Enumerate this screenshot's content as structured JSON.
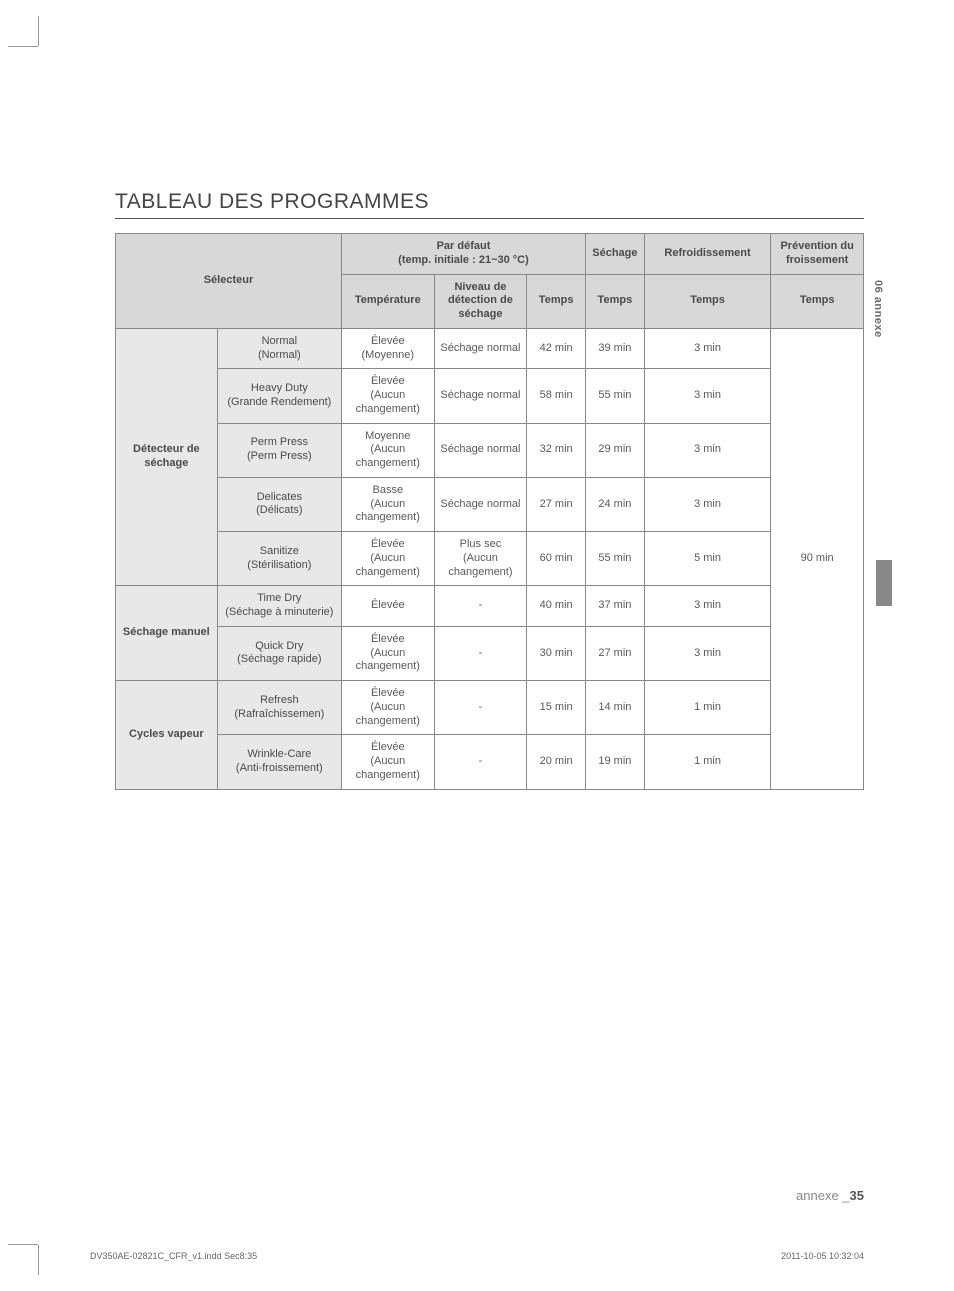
{
  "title": "TABLEAU DES PROGRAMMES",
  "sideTab": "06 annexe",
  "headers": {
    "selector": "Sélecteur",
    "defaultGroup": "Par défaut",
    "defaultSub": "(temp. initiale : 21~30 °C)",
    "drying": "Séchage",
    "cooling": "Refroidissement",
    "wrinkle": "Prévention du froissement",
    "temperature": "Température",
    "dryLevel": "Niveau de détection de séchage",
    "time": "Temps",
    "timeDry": "Temps",
    "timeCool": "Temps",
    "timeWrinkle": "Temps"
  },
  "groups": [
    {
      "label": "Détecteur de séchage",
      "rows": [
        {
          "cycle": "Normal",
          "cycleSub": "(Normal)",
          "temp": "Élevée",
          "tempSub": "(Moyenne)",
          "level": "Séchage normal",
          "time": "42 min",
          "dry": "39 min",
          "cool": "3 min"
        },
        {
          "cycle": "Heavy Duty",
          "cycleSub": "(Grande Rendement)",
          "temp": "Élevée",
          "tempSub": "(Aucun changement)",
          "level": "Séchage normal",
          "time": "58 min",
          "dry": "55 min",
          "cool": "3 min"
        },
        {
          "cycle": "Perm Press",
          "cycleSub": "(Perm Press)",
          "temp": "Moyenne",
          "tempSub": "(Aucun changement)",
          "level": "Séchage normal",
          "time": "32 min",
          "dry": "29 min",
          "cool": "3 min"
        },
        {
          "cycle": "Delicates",
          "cycleSub": "(Délicats)",
          "temp": "Basse",
          "tempSub": "(Aucun changement)",
          "level": "Séchage normal",
          "time": "27 min",
          "dry": "24 min",
          "cool": "3 min"
        },
        {
          "cycle": "Sanitize",
          "cycleSub": "(Stérilisation)",
          "temp": "Élevée",
          "tempSub": "(Aucun changement)",
          "level": "Plus sec",
          "levelSub": "(Aucun changement)",
          "time": "60 min",
          "dry": "55 min",
          "cool": "5 min"
        }
      ]
    },
    {
      "label": "Séchage manuel",
      "rows": [
        {
          "cycle": "Time Dry",
          "cycleSub": "(Séchage à minuterie)",
          "temp": "Élevée",
          "tempSub": "",
          "level": "-",
          "time": "40 min",
          "dry": "37 min",
          "cool": "3 min"
        },
        {
          "cycle": "Quick Dry",
          "cycleSub": "(Séchage rapide)",
          "temp": "Élevée",
          "tempSub": "(Aucun changement)",
          "level": "-",
          "time": "30 min",
          "dry": "27 min",
          "cool": "3 min"
        }
      ]
    },
    {
      "label": "Cycles vapeur",
      "rows": [
        {
          "cycle": "Refresh",
          "cycleSub": "(Rafraîchissemen)",
          "temp": "Élevée",
          "tempSub": "(Aucun changement)",
          "level": "-",
          "time": "15 min",
          "dry": "14 min",
          "cool": "1 min"
        },
        {
          "cycle": "Wrinkle-Care",
          "cycleSub": "(Anti-froissement)",
          "temp": "Élevée",
          "tempSub": "(Aucun changement)",
          "level": "-",
          "time": "20 min",
          "dry": "19 min",
          "cool": "1 min"
        }
      ]
    }
  ],
  "wrinkleValue": "90 min",
  "footer": {
    "rightLabel": "annexe _",
    "rightPage": "35",
    "leftFile": "DV350AE-02821C_CFR_v1.indd   Sec8:35",
    "rightTime": "2011-10-05      10:32:04"
  }
}
